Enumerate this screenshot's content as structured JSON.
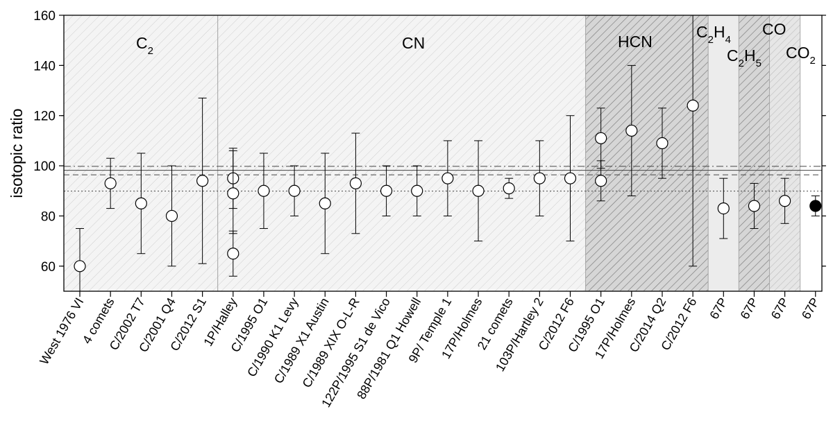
{
  "chart_data": {
    "type": "scatter",
    "ylabel": "isotopic ratio",
    "ylim": [
      50,
      160
    ],
    "yticks": [
      60,
      80,
      100,
      120,
      140,
      160
    ],
    "grid": false,
    "categories": [
      "West 1976 VI",
      "4 comets",
      "C/2002 T7",
      "C/2001 Q4",
      "C/2012 S1",
      "1P/Halley",
      "C/1995 O1",
      "C/1990 K1 Levy",
      "C/1989 X1 Austin",
      "C/1989 XIX O-L-R",
      "122P/1995 S1 de Vico",
      "88P/1981 Q1 Howell",
      "9P/ Temple 1",
      "17P/Holmes",
      "21 comets",
      "103P/Hartley 2",
      "C/2012 F6",
      "C/1995 O1",
      "17P/Holmes",
      "C/2014 Q2",
      "C/2012 F6",
      "67P",
      "67P",
      "67P",
      "67P"
    ],
    "points": [
      {
        "cat": 0,
        "y": 60,
        "lo": 50,
        "hi": 75,
        "filled": false
      },
      {
        "cat": 1,
        "y": 93,
        "lo": 83,
        "hi": 103,
        "filled": false
      },
      {
        "cat": 2,
        "y": 85,
        "lo": 65,
        "hi": 105,
        "filled": false
      },
      {
        "cat": 3,
        "y": 80,
        "lo": 60,
        "hi": 100,
        "filled": false
      },
      {
        "cat": 4,
        "y": 94,
        "lo": 61,
        "hi": 127,
        "filled": false
      },
      {
        "cat": 5,
        "y": 95,
        "lo": 83,
        "hi": 107,
        "filled": false
      },
      {
        "cat": 5,
        "y": 89,
        "lo": 73,
        "hi": 106,
        "filled": false
      },
      {
        "cat": 5,
        "y": 65,
        "lo": 56,
        "hi": 74,
        "filled": false
      },
      {
        "cat": 6,
        "y": 90,
        "lo": 75,
        "hi": 105,
        "filled": false
      },
      {
        "cat": 7,
        "y": 90,
        "lo": 80,
        "hi": 100,
        "filled": false
      },
      {
        "cat": 8,
        "y": 85,
        "lo": 65,
        "hi": 105,
        "filled": false
      },
      {
        "cat": 9,
        "y": 93,
        "lo": 73,
        "hi": 113,
        "filled": false
      },
      {
        "cat": 10,
        "y": 90,
        "lo": 80,
        "hi": 100,
        "filled": false
      },
      {
        "cat": 11,
        "y": 90,
        "lo": 80,
        "hi": 100,
        "filled": false
      },
      {
        "cat": 12,
        "y": 95,
        "lo": 80,
        "hi": 110,
        "filled": false
      },
      {
        "cat": 13,
        "y": 90,
        "lo": 70,
        "hi": 110,
        "filled": false
      },
      {
        "cat": 14,
        "y": 91,
        "lo": 87,
        "hi": 95,
        "filled": false
      },
      {
        "cat": 15,
        "y": 95,
        "lo": 80,
        "hi": 110,
        "filled": false
      },
      {
        "cat": 16,
        "y": 95,
        "lo": 70,
        "hi": 120,
        "filled": false
      },
      {
        "cat": 17,
        "y": 111,
        "lo": 99,
        "hi": 123,
        "filled": false
      },
      {
        "cat": 17,
        "y": 94,
        "lo": 86,
        "hi": 102,
        "filled": false
      },
      {
        "cat": 18,
        "y": 114,
        "lo": 88,
        "hi": 140,
        "filled": false
      },
      {
        "cat": 19,
        "y": 109,
        "lo": 95,
        "hi": 123,
        "filled": false
      },
      {
        "cat": 20,
        "y": 124,
        "lo": 60,
        "hi": 160,
        "filled": false
      },
      {
        "cat": 21,
        "y": 83,
        "lo": 71,
        "hi": 95,
        "filled": false
      },
      {
        "cat": 22,
        "y": 84,
        "lo": 75,
        "hi": 93,
        "filled": false
      },
      {
        "cat": 23,
        "y": 86,
        "lo": 77,
        "hi": 95,
        "filled": false
      },
      {
        "cat": 24,
        "y": 84,
        "lo": 80,
        "hi": 88,
        "filled": true
      }
    ],
    "reference_lines": [
      {
        "y": 89.9,
        "style": "dotted"
      },
      {
        "y": 96.4,
        "style": "dashed"
      },
      {
        "y": 98.2,
        "style": "solid"
      },
      {
        "y": 99.8,
        "style": "dash-dot"
      }
    ],
    "regions": [
      {
        "label": "C",
        "sub": "2",
        "from": 0,
        "to": 4,
        "fill": "light-hatch"
      },
      {
        "label": "CN",
        "sub": "",
        "from": 5,
        "to": 16,
        "fill": "light-hatch"
      },
      {
        "label": "HCN",
        "sub": "",
        "from": 17,
        "to": 20,
        "fill": "dense-hatch"
      },
      {
        "label": "C",
        "sub": "2",
        "label2": "H",
        "sub2": "4",
        "from": 21,
        "to": 21,
        "fill": "pale"
      },
      {
        "label": "C",
        "sub": "2",
        "label2": "H",
        "sub2": "5",
        "from": 22,
        "to": 22,
        "fill": "dense-hatch"
      },
      {
        "label": "CO",
        "sub": "",
        "from": 23,
        "to": 23,
        "fill": "pale-hatch"
      },
      {
        "label": "CO",
        "sub": "2",
        "from": 24,
        "to": 24,
        "fill": "none"
      }
    ]
  }
}
